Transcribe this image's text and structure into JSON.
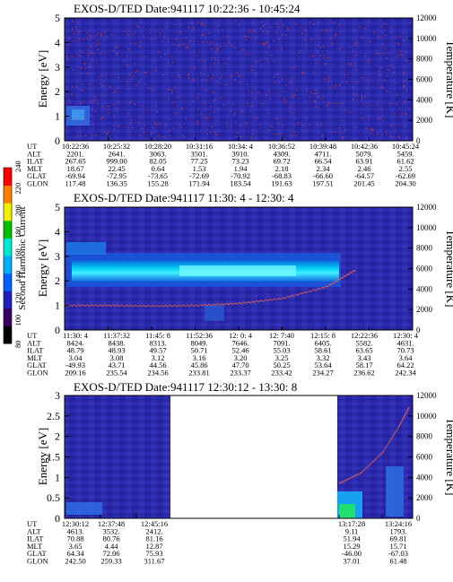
{
  "colors": {
    "background_dark": "#24249c",
    "background_mid": "#2e2eb4",
    "band_cyan": "#00c8f0",
    "band_bright": "#40f0ff",
    "trace_red": "#e04040"
  },
  "colorbar": {
    "label": "Second Harmonic Current",
    "ticks": [
      "80",
      "100",
      "120",
      "140",
      "160",
      "180",
      "200",
      "220",
      "240"
    ],
    "colors": [
      "#000000",
      "#3a0060",
      "#2020c0",
      "#0060ff",
      "#00b0ff",
      "#00e8d0",
      "#00c000",
      "#f0f000",
      "#ff8000",
      "#ff0000"
    ]
  },
  "panels": [
    {
      "title": "EXOS-D/TED   Date:941117  10:22:36 - 10:45:24",
      "ylabel": "Energy [eV]",
      "y2label": "Temperature [K]",
      "yticks": [
        "0",
        "1",
        "2",
        "3",
        "4",
        "5"
      ],
      "y2ticks": [
        "0",
        "2000",
        "4000",
        "6000",
        "8000",
        "10000",
        "12000"
      ],
      "eph": {
        "labels": [
          "UT",
          "ALT",
          "ILAT",
          "MLT",
          "GLAT",
          "GLON"
        ],
        "cols": [
          [
            "10:22:36",
            "2201.",
            "267.65",
            "18.67",
            "-69.94",
            "117.48"
          ],
          [
            "10:25:32",
            "2641.",
            "999.00",
            "22.45",
            "-72.95",
            "136.35"
          ],
          [
            "10:28:20",
            "3063.",
            "82.05",
            "0.64",
            "-73.65",
            "155.28"
          ],
          [
            "10:31:16",
            "3501.",
            "77.25",
            "1.53",
            "-72.69",
            "171.94"
          ],
          [
            "10:34: 4",
            "3910.",
            "73.23",
            "1.94",
            "-70.92",
            "183.54"
          ],
          [
            "10:36:52",
            "4309.",
            "69.72",
            "2.18",
            "-68.83",
            "191.63"
          ],
          [
            "10:39:48",
            "4711.",
            "66.54",
            "2.34",
            "-66.60",
            "197.51"
          ],
          [
            "10:42:36",
            "5079.",
            "63.91",
            "2.46",
            "-64.57",
            "201.45"
          ],
          [
            "10:45:24",
            "5459.",
            "61.62",
            "2.55",
            "-62.69",
            "204.30"
          ]
        ]
      }
    },
    {
      "title": "EXOS-D/TED   Date:941117  11:30: 4 - 12:30: 4",
      "ylabel": "Energy [eV]",
      "y2label": "Temperature [K]",
      "yticks": [
        "0",
        "1",
        "2",
        "3",
        "4",
        "5"
      ],
      "y2ticks": [
        "0",
        "2000",
        "4000",
        "6000",
        "8000",
        "10000",
        "12000"
      ],
      "eph": {
        "labels": [
          "UT",
          "ALT",
          "ILAT",
          "MLT",
          "GLAT",
          "GLON"
        ],
        "cols": [
          [
            "11:30: 4",
            "8424.",
            "48.79",
            "3.04",
            "-49.93",
            "209.16"
          ],
          [
            "11:37:32",
            "8438.",
            "48.93",
            "3.08",
            "43.71",
            "235.54"
          ],
          [
            "11:45: 8",
            "8313.",
            "49.57",
            "3.12",
            "44.56",
            "234.56"
          ],
          [
            "11:52:36",
            "8049.",
            "50.71",
            "3.16",
            "45.86",
            "233.81"
          ],
          [
            "12: 0: 4",
            "7646.",
            "52.46",
            "3.20",
            "47.70",
            "233.37"
          ],
          [
            "12: 7:40",
            "7091.",
            "55.03",
            "3.25",
            "50.25",
            "233.42"
          ],
          [
            "12:15: 8",
            "6405.",
            "58.61",
            "3.32",
            "53.64",
            "234.27"
          ],
          [
            "12:22:36",
            "5582.",
            "63.65",
            "3.43",
            "58.17",
            "236.62"
          ],
          [
            "12:30: 4",
            "4631.",
            "70.73",
            "3.64",
            "64.22",
            "242.34"
          ]
        ]
      }
    },
    {
      "title": "EXOS-D/TED   Date:941117  12:30:12 - 13:30: 8",
      "ylabel": "Energy [eV]",
      "y2label": "Temperature [K]",
      "yticks": [
        "0",
        "0.5",
        "1",
        "1.5",
        "2",
        "2.5",
        "3"
      ],
      "y2ticks": [
        "0",
        "2000",
        "4000",
        "6000",
        "8000",
        "10000",
        "12000"
      ],
      "eph": {
        "labels": [
          "UT",
          "ALT",
          "ILAT",
          "MLT",
          "GLAT",
          "GLON"
        ],
        "cols": [
          [
            "12:30:12",
            "4613.",
            "70.88",
            "3.65",
            "64.34",
            "242.50"
          ],
          [
            "12:37:48",
            "3532.",
            "80.76",
            "4.44",
            "72.06",
            "259.33"
          ],
          [
            "12:45:16",
            "2412.",
            "81.16",
            "12.87",
            "75.93",
            "311.67"
          ],
          [
            "13:17:28",
            "9.11",
            "51.94",
            "15.29",
            "-46.00",
            "37.01"
          ],
          [
            "13:24:16",
            "1793.",
            "69.81",
            "15.71",
            "-67.03",
            "61.48"
          ]
        ]
      }
    }
  ],
  "chart_data": [
    {
      "type": "heatmap",
      "title": "EXOS-D/TED   Date:941117  10:22:36 - 10:45:24",
      "ylabel": "Energy [eV]",
      "y2label": "Temperature [K]",
      "ylim": [
        0,
        5
      ],
      "y2lim": [
        0,
        12000
      ],
      "x": [
        "10:22:36",
        "10:25:32",
        "10:28:20",
        "10:31:16",
        "10:34: 4",
        "10:36:52",
        "10:39:48",
        "10:42:36",
        "10:45:24"
      ],
      "description_values": {
        "low_energy_enhancement": {
          "x_range": [
            "10:22:36",
            "10:25:32"
          ],
          "energy_range": [
            0.6,
            1.5
          ]
        }
      }
    },
    {
      "type": "heatmap",
      "title": "EXOS-D/TED   Date:941117  11:30: 4 - 12:30: 4",
      "ylabel": "Energy [eV]",
      "y2label": "Temperature [K]",
      "ylim": [
        0,
        5
      ],
      "y2lim": [
        0,
        12000
      ],
      "x": [
        "11:30: 4",
        "11:37:32",
        "11:45: 8",
        "11:52:36",
        "12: 0: 4",
        "12: 7:40",
        "12:15: 8",
        "12:22:36",
        "12:30: 4"
      ],
      "band": {
        "energy_center": 2.4,
        "energy_range": [
          1.6,
          3.0
        ],
        "x_end": "12:15: 8"
      },
      "temperature_trace": [
        {
          "x": "11:30: 4",
          "T": 2500
        },
        {
          "x": "11:37:32",
          "T": 2500
        },
        {
          "x": "11:45: 8",
          "T": 2450
        },
        {
          "x": "11:52:36",
          "T": 2500
        },
        {
          "x": "12: 0: 4",
          "T": 2700
        },
        {
          "x": "12: 7:40",
          "T": 3200
        },
        {
          "x": "12:15: 8",
          "T": 4300
        },
        {
          "x": "12:20:00",
          "T": 6000
        }
      ]
    },
    {
      "type": "heatmap",
      "title": "EXOS-D/TED   Date:941117  12:30:12 - 13:30: 8",
      "ylabel": "Energy [eV]",
      "y2label": "Temperature [K]",
      "ylim": [
        0,
        3
      ],
      "y2lim": [
        0,
        12000
      ],
      "x": [
        "12:30:12",
        "12:37:48",
        "12:45:16",
        "13:17:28",
        "13:24:16"
      ],
      "data_gap": [
        "12:45:16",
        "13:17:28"
      ],
      "temperature_trace": [
        {
          "x": "13:17:28",
          "T": 3500
        },
        {
          "x": "13:20:00",
          "T": 4500
        },
        {
          "x": "13:24:16",
          "T": 6500
        },
        {
          "x": "13:27:00",
          "T": 9000
        },
        {
          "x": "13:29:00",
          "T": 11000
        }
      ]
    }
  ]
}
